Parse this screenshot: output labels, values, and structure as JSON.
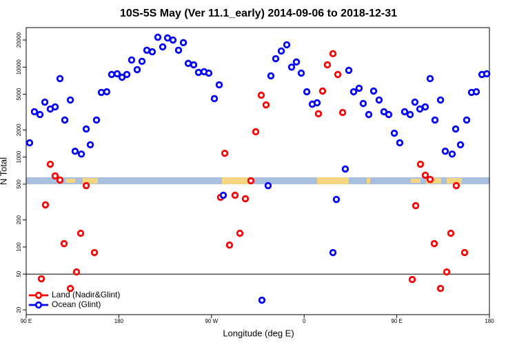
{
  "chart_data": {
    "type": "scatter",
    "title": "10S-5S May (Ver 11.1_early)   2014-09-06 to 2018-12-31",
    "x_label": "Longitude (deg E)",
    "y_label": "N Total",
    "xlim": [
      90,
      540
    ],
    "ylim": [
      17.7,
      27500
    ],
    "log_y": true,
    "legend": "bottomleft",
    "reference_line": 50,
    "xticks": [
      {
        "value": 90,
        "label": "90 E"
      },
      {
        "value": 180,
        "label": "180"
      },
      {
        "value": 270,
        "label": "90 W"
      },
      {
        "value": 360,
        "label": "0"
      },
      {
        "value": 450,
        "label": "90 E"
      },
      {
        "value": 540,
        "label": "180"
      }
    ],
    "yticks": [
      20,
      50,
      100,
      200,
      500,
      1000,
      2000,
      5000,
      10000,
      20000
    ],
    "series": [
      {
        "name": "Land (Nadir&Glint)",
        "color": "#ff0000",
        "x": [
          104.7,
          108.7,
          113.4,
          118.1,
          122.8,
          126.8,
          132.9,
          138.9,
          142.9,
          148.3,
          156.3,
          278.8,
          282.9,
          287.5,
          292.9,
          297.6,
          302.9,
          308.3,
          313.0,
          318.3,
          323.0,
          373.9,
          377.9,
          382.6,
          388.0,
          392.7,
          397.4,
          465.0,
          468.4,
          473.0,
          477.7,
          482.4,
          486.4,
          492.5,
          498.5,
          502.5,
          507.8,
          515.9
        ],
        "values": [
          44.3,
          294,
          832,
          617,
          555,
          109,
          34.6,
          52.8,
          142,
          481,
          86.7,
          357,
          1100,
          105,
          376,
          142,
          344,
          545,
          1910,
          4870,
          3800,
          3030,
          5420,
          10600,
          14100,
          8280,
          3130,
          43.5,
          288,
          832,
          628,
          564,
          109,
          34.6,
          52.8,
          142,
          481,
          86.7
        ]
      },
      {
        "name": "Ocean (Glint)",
        "color": "#0000ff",
        "x": [
          93.3,
          98.0,
          103.4,
          108.1,
          113.4,
          118.1,
          122.8,
          127.5,
          132.9,
          137.5,
          143.6,
          148.3,
          152.3,
          158.3,
          163.0,
          168.3,
          173.0,
          178.4,
          183.1,
          187.8,
          192.4,
          197.8,
          202.5,
          207.2,
          212.5,
          217.9,
          222.6,
          227.3,
          232.6,
          238.0,
          242.7,
          247.4,
          252.7,
          257.4,
          262.8,
          267.4,
          272.8,
          277.5,
          281.5,
          319.0,
          325.0,
          327.7,
          332.4,
          337.8,
          343.1,
          347.8,
          352.5,
          357.2,
          362.6,
          367.9,
          372.6,
          388.0,
          391.3,
          400.0,
          403.4,
          408.1,
          413.4,
          417.4,
          422.8,
          427.5,
          432.8,
          437.5,
          442.2,
          447.6,
          452.9,
          457.6,
          463.0,
          467.6,
          472.4,
          477.7,
          482.4,
          487.1,
          492.5,
          497.1,
          503.8,
          507.2,
          511.9,
          517.9,
          522.6,
          527.3,
          532.7,
          537.4
        ],
        "values": [
          1440,
          3190,
          2970,
          4080,
          3420,
          3610,
          7450,
          2580,
          4310,
          1160,
          1080,
          2050,
          1370,
          2580,
          5230,
          5320,
          8280,
          8430,
          7710,
          8280,
          12000,
          9370,
          11600,
          15400,
          14800,
          21500,
          16800,
          21100,
          20000,
          15400,
          18700,
          11000,
          10600,
          8730,
          8890,
          8570,
          4460,
          6350,
          376,
          25.6,
          481,
          8000,
          12400,
          15100,
          17700,
          10000,
          11400,
          8570,
          5320,
          3870,
          4010,
          86.7,
          338,
          736,
          9200,
          5320,
          5820,
          3940,
          2970,
          5420,
          4310,
          3190,
          2970,
          1840,
          1440,
          3190,
          2970,
          4080,
          3420,
          3610,
          7450,
          2580,
          4310,
          1160,
          1080,
          2050,
          1370,
          2580,
          5230,
          5320,
          8280,
          8430
        ]
      }
    ]
  }
}
